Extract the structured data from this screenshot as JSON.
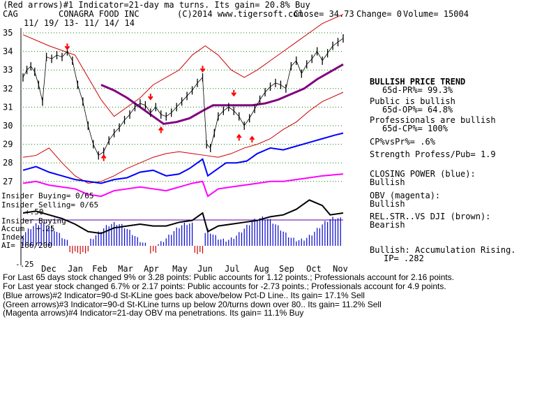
{
  "header": {
    "line1": "(Red arrows)#1 Indicator=21-day ma turns. Its gain= 20.8% Buy",
    "ticker": "CAG",
    "company": "CONAGRA FOOD INC",
    "copyright": "(C)2014 www.tigersoft.com",
    "close": "Close= 34.73",
    "change": "Change= 0",
    "volume": "Volume= 15004",
    "date_range": "11/ 19/ 13- 11/ 14/ 14"
  },
  "left_labels": {
    "insider_buying": "Insider Buying= 0/65",
    "insider_selling": "Insider Selling= 0/65",
    "insider_buying_2": "Insider Buying",
    "accum": "Accum",
    "accum_plus": "+.25",
    "index": "Index",
    "ai": "AI= 166/200",
    "minus50": "+.50",
    "minus25": "-.25"
  },
  "right_panel": {
    "trend": "BULLISH PRICE TREND",
    "pr": "65d-PR%= 99.3%",
    "public": "Public is bullish",
    "op": "65d-OP%= 64.8%",
    "pros": "Professionals are bullish",
    "cp": "65d-CP%= 100%",
    "cpvspr": "CP%vsPr%= .6%",
    "strength": "Strength Profess/Pub= 1.9",
    "closing_power": "CLOSING POWER (blue):",
    "closing_power_val": "Bullish",
    "obv": "OBV (magenta):",
    "obv_val": "Bullish",
    "relstr": "REL.STR..VS DJI (brown):",
    "relstr_val": "Bearish",
    "accum_rising": "Bullish: Accumulation Rising.",
    "ip": "IP= .282"
  },
  "footer": {
    "line1": "For Last 65 days stock changed 9% or 3.28 points: Public accounts for 1.12 points.; Professionals account for 2.16 points.",
    "line2": "For Last year stock changed 6.7% or 2.17 points: Public accounts for -2.73 points.; Professionals account for 4.9 points.",
    "line3": "(Blue arrows)#2 Indicator=90-d St-KLine goes back above/below Pct-D Line.. Its gain= 17.1% Sell",
    "line4": "(Green arrows)#3 Indicator=90-d St-KLine turns up below 20/turns down over 80.. Its gain= 11.2% Sell",
    "line5": "(Magenta arrows)#4 Indicator=21-day OBV ma penetrations. Its gain= 11.1% Buy"
  },
  "colors": {
    "price": "#000000",
    "bands": "#cc0000",
    "ma": "#800080",
    "closing_power": "#0000ff",
    "obv": "#ff00ff",
    "relstr": "#000000",
    "accum_bars": "#0000cc",
    "accum_neg": "#cc0000",
    "grid": "#008000",
    "arrows": "#ff0000"
  },
  "chart_data": {
    "type": "line",
    "title": "CONAGRA FOOD INC",
    "y_ticks": [
      35,
      34,
      33,
      32,
      31,
      30,
      29,
      28,
      27
    ],
    "x_ticks": [
      "Dec",
      "Jan",
      "Feb",
      "Mar",
      "Apr",
      "May",
      "Jun",
      "Jul",
      "Aug",
      "Sep",
      "Oct",
      "Nov"
    ],
    "ylim": [
      26.8,
      35.3
    ],
    "price_path": [
      [
        0,
        32.6
      ],
      [
        3,
        33.0
      ],
      [
        6,
        33.2
      ],
      [
        9,
        32.9
      ],
      [
        12,
        32.2
      ],
      [
        15,
        31.3
      ],
      [
        18,
        33.7
      ],
      [
        22,
        33.6
      ],
      [
        26,
        33.8
      ],
      [
        30,
        33.7
      ],
      [
        34,
        34.0
      ],
      [
        38,
        33.5
      ],
      [
        42,
        32.2
      ],
      [
        46,
        31.3
      ],
      [
        50,
        30.0
      ],
      [
        54,
        29.0
      ],
      [
        58,
        28.4
      ],
      [
        62,
        28.6
      ],
      [
        66,
        29.2
      ],
      [
        70,
        29.6
      ],
      [
        74,
        29.9
      ],
      [
        78,
        30.3
      ],
      [
        82,
        30.6
      ],
      [
        86,
        31.0
      ],
      [
        90,
        31.2
      ],
      [
        94,
        31.1
      ],
      [
        98,
        30.7
      ],
      [
        102,
        31.0
      ],
      [
        106,
        30.6
      ],
      [
        110,
        30.5
      ],
      [
        114,
        30.7
      ],
      [
        118,
        31.0
      ],
      [
        122,
        31.3
      ],
      [
        126,
        31.6
      ],
      [
        130,
        31.9
      ],
      [
        134,
        32.3
      ],
      [
        138,
        32.6
      ],
      [
        141,
        29.0
      ],
      [
        144,
        28.8
      ],
      [
        147,
        29.6
      ],
      [
        150,
        30.5
      ],
      [
        154,
        30.8
      ],
      [
        158,
        31.0
      ],
      [
        162,
        30.8
      ],
      [
        166,
        30.5
      ],
      [
        170,
        30.0
      ],
      [
        174,
        30.4
      ],
      [
        178,
        30.9
      ],
      [
        182,
        31.4
      ],
      [
        186,
        31.8
      ],
      [
        190,
        32.1
      ],
      [
        194,
        32.3
      ],
      [
        198,
        32.2
      ],
      [
        202,
        32.0
      ],
      [
        206,
        33.2
      ],
      [
        210,
        33.5
      ],
      [
        214,
        32.8
      ],
      [
        218,
        33.3
      ],
      [
        222,
        33.6
      ],
      [
        226,
        34.0
      ],
      [
        230,
        33.5
      ],
      [
        234,
        33.9
      ],
      [
        238,
        34.3
      ],
      [
        242,
        34.5
      ],
      [
        246,
        34.7
      ]
    ],
    "ma_path": [
      [
        60,
        32.2
      ],
      [
        70,
        31.9
      ],
      [
        80,
        31.5
      ],
      [
        90,
        31.0
      ],
      [
        100,
        30.5
      ],
      [
        108,
        30.1
      ],
      [
        118,
        30.2
      ],
      [
        128,
        30.4
      ],
      [
        138,
        30.8
      ],
      [
        146,
        31.1
      ],
      [
        156,
        31.1
      ],
      [
        166,
        31.1
      ],
      [
        176,
        31.1
      ],
      [
        186,
        31.2
      ],
      [
        196,
        31.4
      ],
      [
        206,
        31.7
      ],
      [
        216,
        32.0
      ],
      [
        226,
        32.5
      ],
      [
        236,
        32.9
      ],
      [
        246,
        33.3
      ]
    ],
    "upper_band_path": [
      [
        0,
        34.9
      ],
      [
        20,
        34.3
      ],
      [
        40,
        33.8
      ],
      [
        60,
        31.4
      ],
      [
        70,
        30.5
      ],
      [
        80,
        31.0
      ],
      [
        90,
        31.5
      ],
      [
        100,
        32.2
      ],
      [
        110,
        32.6
      ],
      [
        120,
        33.0
      ],
      [
        130,
        33.8
      ],
      [
        140,
        34.3
      ],
      [
        150,
        33.8
      ],
      [
        160,
        33.0
      ],
      [
        170,
        32.6
      ],
      [
        180,
        33.0
      ],
      [
        190,
        33.5
      ],
      [
        200,
        34.0
      ],
      [
        210,
        34.5
      ],
      [
        220,
        35.0
      ],
      [
        230,
        35.5
      ],
      [
        246,
        36.0
      ]
    ],
    "lower_band_path": [
      [
        0,
        28.3
      ],
      [
        10,
        28.4
      ],
      [
        20,
        28.8
      ],
      [
        30,
        28.0
      ],
      [
        40,
        27.3
      ],
      [
        50,
        26.9
      ],
      [
        60,
        27.0
      ],
      [
        70,
        27.3
      ],
      [
        80,
        27.7
      ],
      [
        90,
        28.0
      ],
      [
        100,
        28.3
      ],
      [
        110,
        28.5
      ],
      [
        120,
        28.6
      ],
      [
        130,
        28.5
      ],
      [
        140,
        28.4
      ],
      [
        150,
        28.3
      ],
      [
        160,
        28.5
      ],
      [
        170,
        28.8
      ],
      [
        180,
        29.0
      ],
      [
        190,
        29.3
      ],
      [
        200,
        29.8
      ],
      [
        210,
        30.2
      ],
      [
        220,
        30.8
      ],
      [
        230,
        31.3
      ],
      [
        246,
        31.8
      ]
    ],
    "closing_power_path": [
      [
        0,
        27.6
      ],
      [
        10,
        27.8
      ],
      [
        20,
        27.5
      ],
      [
        30,
        27.3
      ],
      [
        40,
        27.1
      ],
      [
        50,
        27.0
      ],
      [
        60,
        26.9
      ],
      [
        70,
        27.1
      ],
      [
        80,
        27.2
      ],
      [
        90,
        27.5
      ],
      [
        100,
        27.6
      ],
      [
        110,
        27.3
      ],
      [
        120,
        27.4
      ],
      [
        128,
        27.7
      ],
      [
        134,
        28.0
      ],
      [
        138,
        28.2
      ],
      [
        142,
        27.3
      ],
      [
        148,
        27.6
      ],
      [
        156,
        28.0
      ],
      [
        164,
        28.0
      ],
      [
        172,
        28.1
      ],
      [
        180,
        28.5
      ],
      [
        190,
        28.8
      ],
      [
        200,
        28.7
      ],
      [
        210,
        28.9
      ],
      [
        220,
        29.1
      ],
      [
        230,
        29.3
      ],
      [
        240,
        29.5
      ],
      [
        246,
        29.6
      ]
    ],
    "obv_path": [
      [
        0,
        26.9
      ],
      [
        10,
        27.0
      ],
      [
        20,
        26.8
      ],
      [
        30,
        26.7
      ],
      [
        40,
        26.6
      ],
      [
        50,
        26.3
      ],
      [
        60,
        26.2
      ],
      [
        70,
        26.5
      ],
      [
        80,
        26.6
      ],
      [
        90,
        26.7
      ],
      [
        100,
        26.6
      ],
      [
        110,
        26.5
      ],
      [
        120,
        26.7
      ],
      [
        130,
        26.9
      ],
      [
        138,
        27.0
      ],
      [
        142,
        26.2
      ],
      [
        150,
        26.6
      ],
      [
        160,
        26.7
      ],
      [
        170,
        26.8
      ],
      [
        180,
        26.9
      ],
      [
        190,
        27.0
      ],
      [
        200,
        27.0
      ],
      [
        210,
        27.1
      ],
      [
        220,
        27.2
      ],
      [
        230,
        27.3
      ],
      [
        246,
        27.4
      ]
    ],
    "relstr_path": [
      [
        0,
        25.3
      ],
      [
        10,
        25.4
      ],
      [
        20,
        25.2
      ],
      [
        30,
        25.0
      ],
      [
        40,
        24.7
      ],
      [
        50,
        24.3
      ],
      [
        60,
        24.2
      ],
      [
        70,
        24.5
      ],
      [
        80,
        24.6
      ],
      [
        90,
        24.7
      ],
      [
        100,
        24.6
      ],
      [
        110,
        24.6
      ],
      [
        120,
        24.8
      ],
      [
        130,
        24.9
      ],
      [
        138,
        25.3
      ],
      [
        142,
        24.3
      ],
      [
        150,
        24.6
      ],
      [
        160,
        24.7
      ],
      [
        170,
        24.8
      ],
      [
        180,
        24.9
      ],
      [
        190,
        25.1
      ],
      [
        200,
        25.2
      ],
      [
        210,
        25.5
      ],
      [
        220,
        26.0
      ],
      [
        230,
        25.7
      ],
      [
        236,
        25.2
      ],
      [
        246,
        25.3
      ]
    ]
  }
}
